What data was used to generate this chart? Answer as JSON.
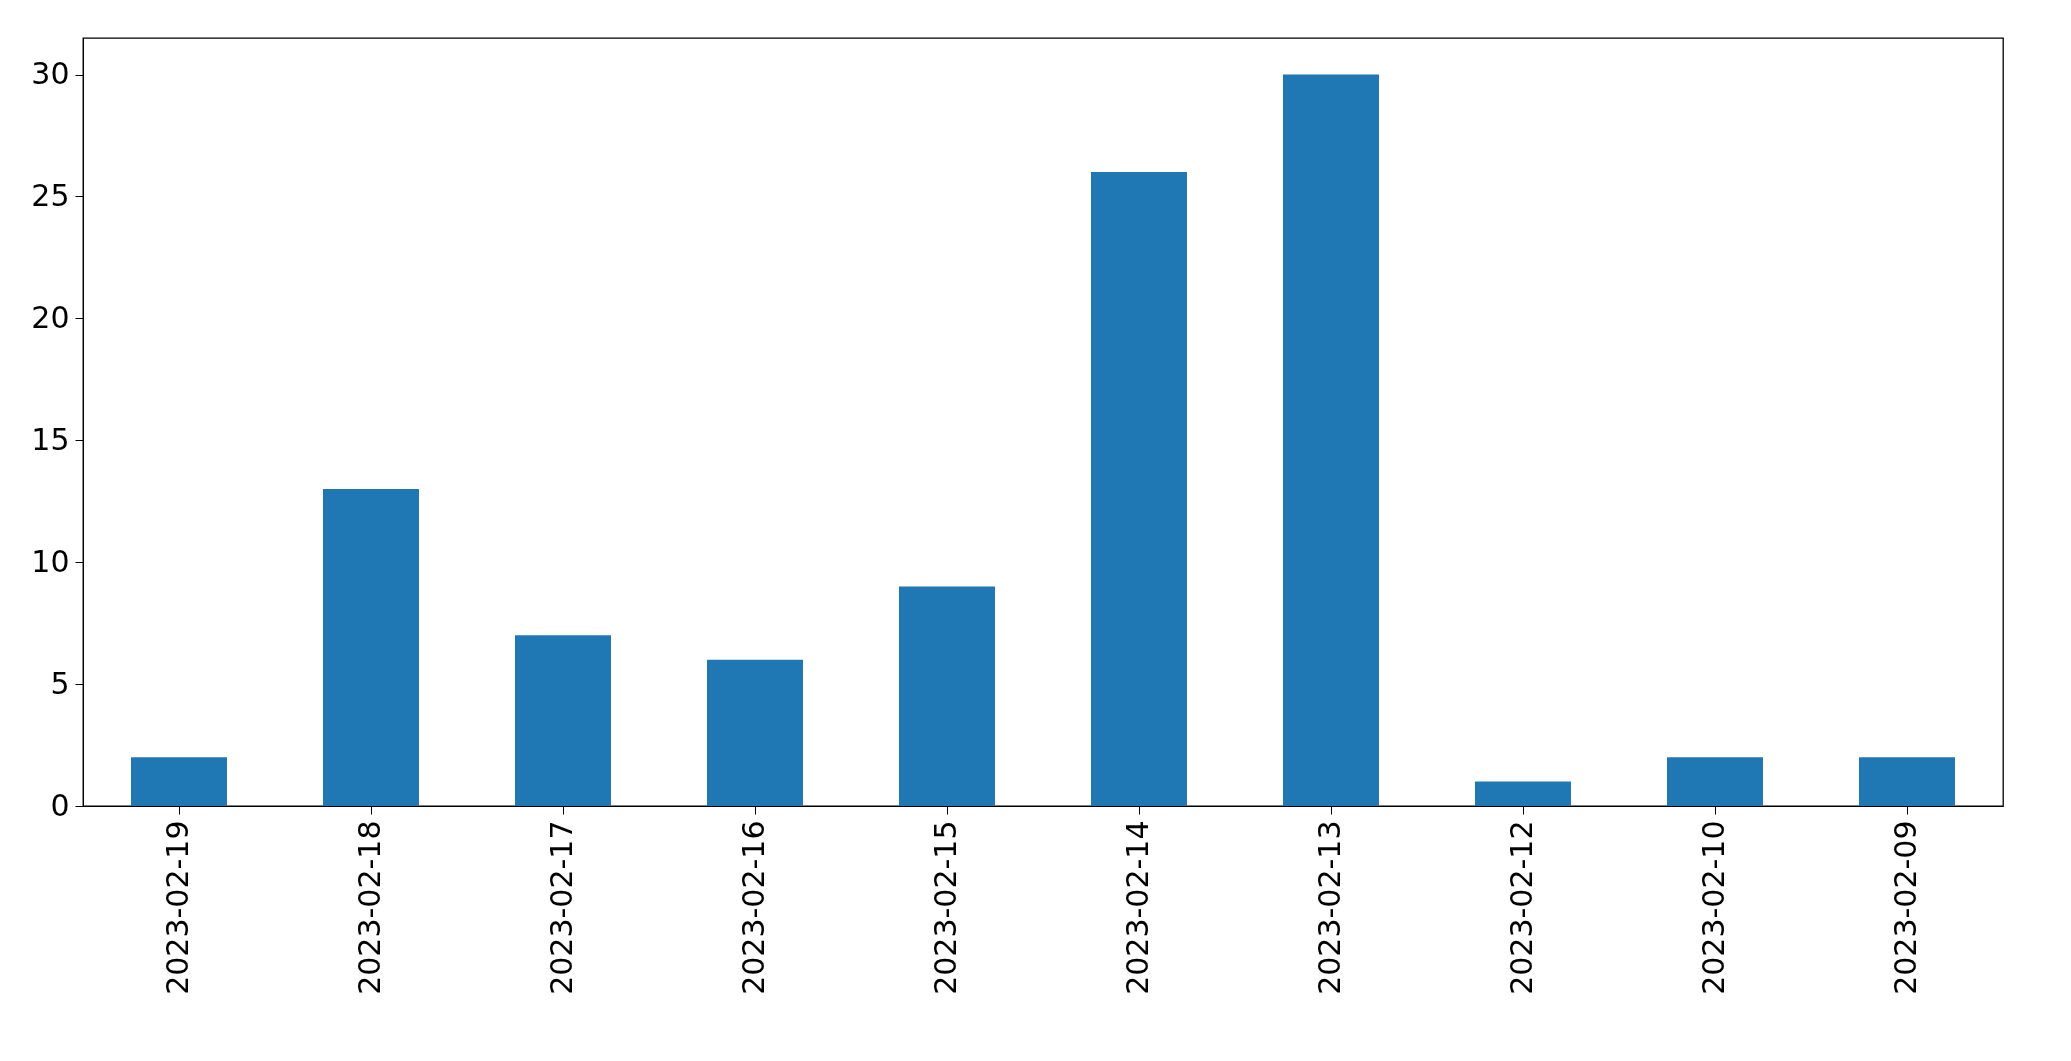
{
  "chart_data": {
    "type": "bar",
    "categories": [
      "2023-02-19",
      "2023-02-18",
      "2023-02-17",
      "2023-02-16",
      "2023-02-15",
      "2023-02-14",
      "2023-02-13",
      "2023-02-12",
      "2023-02-10",
      "2023-02-09"
    ],
    "values": [
      2,
      13,
      7,
      6,
      9,
      26,
      30,
      1,
      2,
      2
    ],
    "color": "#1f77b4",
    "ylim": [
      0,
      31.5
    ],
    "yticks": [
      0,
      5,
      10,
      15,
      20,
      25,
      30
    ],
    "grid": false
  }
}
